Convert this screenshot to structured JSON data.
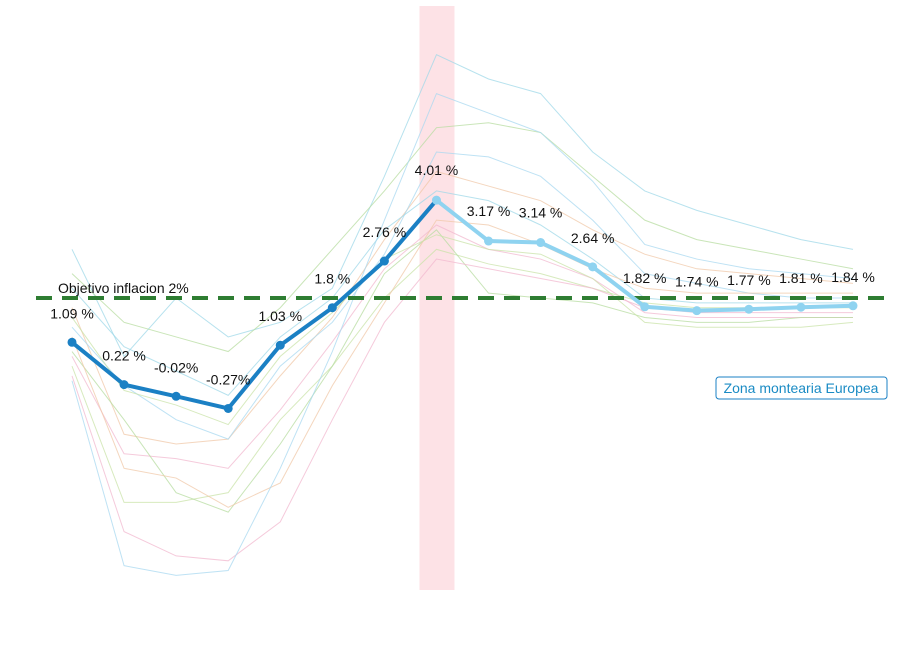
{
  "chart_data": {
    "type": "line",
    "colors": {
      "historical": "#1b80c4",
      "forecast": "#8fd3f0",
      "target": "#2e7d32",
      "highlight_band": "#fde2e6",
      "legend_border": "#1b80c4",
      "background_lines": [
        "#9fd8e8",
        "#b7dca0",
        "#f2b8cf",
        "#f0c8a8",
        "#c9e3a8",
        "#a8d8f0"
      ]
    },
    "ylim": [
      -4,
      8
    ],
    "grid": false,
    "legend": {
      "label": "Zona montearia Europea",
      "position": "right"
    },
    "target": {
      "value": 2,
      "label": "Objetivo inflacion 2%"
    },
    "highlight_index": 7,
    "series": [
      {
        "name": "Zona montearia Europea",
        "values": [
          1.09,
          0.22,
          -0.02,
          -0.27,
          1.03,
          1.8,
          2.76,
          4.01,
          3.17,
          3.14,
          2.64,
          1.82,
          1.74,
          1.77,
          1.81,
          1.84
        ],
        "labels": [
          "1.09 %",
          "0.22 %",
          "-0.02%",
          "-0.27%",
          "1.03 %",
          "1.8  %",
          "2.76 %",
          "4.01 %",
          "3.17 %",
          "3.14 %",
          "2.64 %",
          "1.82 %",
          "1.74 %",
          "1.77 %",
          "1.81 %",
          "1.84 %"
        ],
        "forecast_from_index": 7
      }
    ],
    "background_series": [
      [
        3.0,
        0.8,
        2.0,
        1.2,
        1.5,
        2.2,
        4.5,
        7.0,
        6.5,
        6.2,
        5.0,
        4.2,
        3.8,
        3.5,
        3.2,
        3.0
      ],
      [
        2.5,
        1.5,
        1.2,
        0.9,
        1.8,
        3.0,
        4.2,
        5.5,
        5.6,
        5.4,
        4.5,
        3.6,
        3.2,
        3.0,
        2.8,
        2.6
      ],
      [
        0.8,
        -1.2,
        -1.3,
        -1.5,
        -0.3,
        1.1,
        2.6,
        3.5,
        3.0,
        2.8,
        2.4,
        1.7,
        1.6,
        1.6,
        1.6,
        1.6
      ],
      [
        1.8,
        -0.8,
        -1.0,
        -0.9,
        0.4,
        1.6,
        3.2,
        4.6,
        4.3,
        4.0,
        3.4,
        2.9,
        2.6,
        2.5,
        2.4,
        2.3
      ],
      [
        0.6,
        -2.2,
        -2.2,
        -2.0,
        -0.5,
        0.6,
        2.0,
        3.0,
        2.7,
        2.5,
        2.2,
        1.9,
        1.8,
        1.8,
        1.8,
        1.8
      ],
      [
        1.4,
        0.2,
        -0.5,
        -0.9,
        0.6,
        1.5,
        2.9,
        5.0,
        4.9,
        4.5,
        3.6,
        2.5,
        2.3,
        2.1,
        2.0,
        2.0
      ],
      [
        2.2,
        1.0,
        0.5,
        0.0,
        1.2,
        2.0,
        3.4,
        4.2,
        4.0,
        3.5,
        2.8,
        2.0,
        1.9,
        1.9,
        1.9,
        1.9
      ],
      [
        0.9,
        -0.5,
        -2.0,
        -2.4,
        -1.0,
        0.6,
        2.5,
        3.4,
        2.1,
        2.0,
        1.9,
        1.6,
        1.5,
        1.5,
        1.6,
        1.6
      ],
      [
        0.4,
        -2.8,
        -3.3,
        -3.4,
        -2.6,
        -0.5,
        1.5,
        2.8,
        2.6,
        2.4,
        2.2,
        1.8,
        1.7,
        1.7,
        1.7,
        1.7
      ],
      [
        1.2,
        -1.5,
        -1.7,
        -2.3,
        -1.8,
        0.2,
        1.9,
        3.6,
        3.5,
        3.1,
        2.6,
        2.2,
        2.1,
        2.1,
        2.1,
        2.1
      ],
      [
        1.6,
        0.1,
        -0.2,
        -0.6,
        0.8,
        1.7,
        2.8,
        3.3,
        3.0,
        2.9,
        2.4,
        1.5,
        1.4,
        1.4,
        1.4,
        1.5
      ],
      [
        0.3,
        -3.5,
        -3.7,
        -3.6,
        -1.5,
        0.9,
        3.6,
        6.2,
        5.8,
        5.4,
        4.4,
        3.1,
        2.8,
        2.6,
        2.5,
        2.4
      ]
    ]
  }
}
